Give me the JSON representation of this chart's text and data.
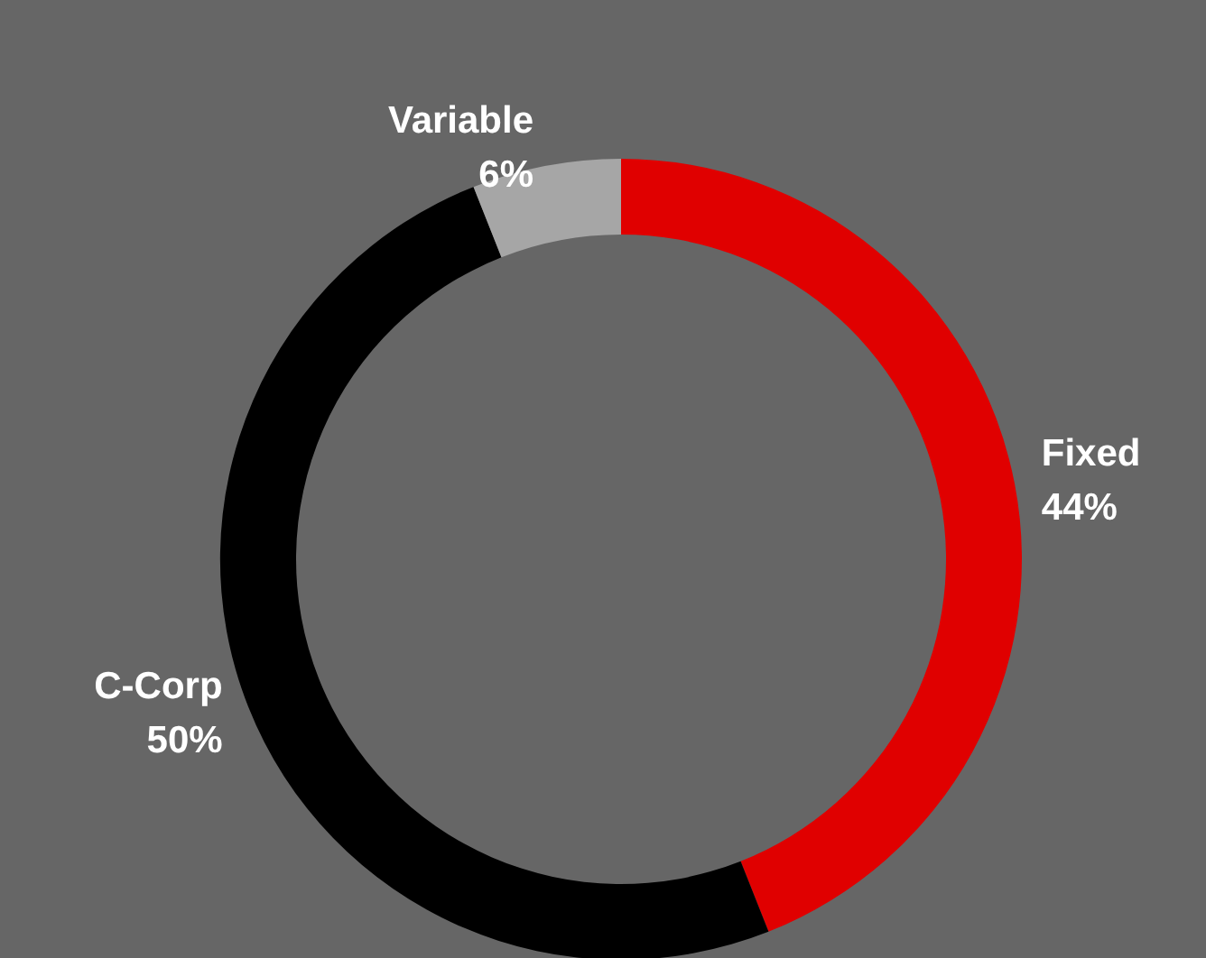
{
  "chart_data": {
    "type": "donut",
    "categories": [
      "Fixed",
      "C-Corp",
      "Variable"
    ],
    "values": [
      44,
      50,
      6
    ],
    "colors": [
      "#e00000",
      "#000000",
      "#a6a6a6"
    ],
    "value_labels": [
      "44%",
      "50%",
      "6%"
    ],
    "legend": false
  }
}
